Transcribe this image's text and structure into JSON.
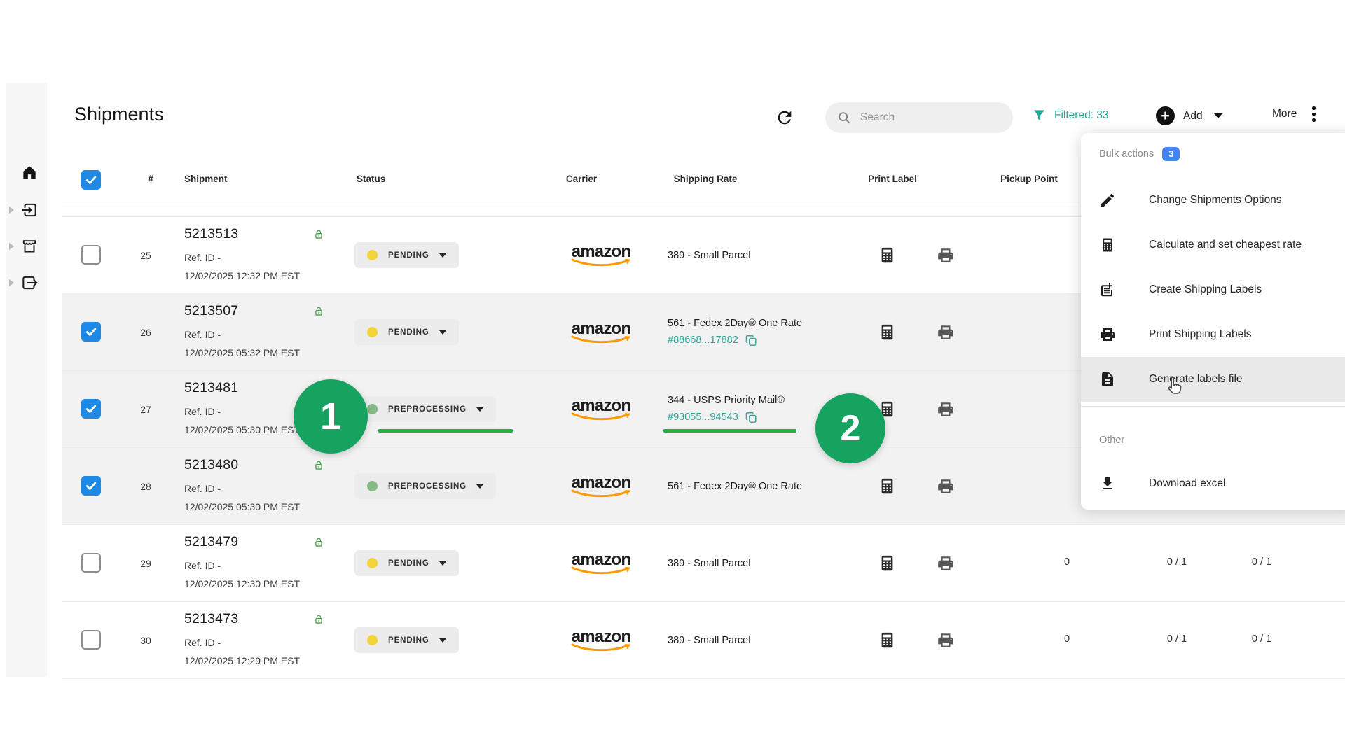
{
  "header": {
    "title": "Shipments",
    "search_placeholder": "Search",
    "filtered_label": "Filtered: 33",
    "add_label": "Add",
    "more_label": "More"
  },
  "sidebar": {
    "items": [
      {
        "icon": "home-icon",
        "expandable": false
      },
      {
        "icon": "inbound-icon",
        "expandable": true
      },
      {
        "icon": "store-icon",
        "expandable": true
      },
      {
        "icon": "outbound-icon",
        "expandable": true
      }
    ]
  },
  "bulk_menu": {
    "section_label": "Bulk actions",
    "selected_count": "3",
    "items": [
      {
        "icon": "pencil-icon",
        "label": "Change Shipments Options",
        "highlighted": false
      },
      {
        "icon": "calculator-icon",
        "label": "Calculate and set cheapest rate",
        "highlighted": false
      },
      {
        "icon": "note-add-icon",
        "label": "Create Shipping Labels",
        "highlighted": false
      },
      {
        "icon": "printer-icon",
        "label": "Print Shipping Labels",
        "highlighted": false
      },
      {
        "icon": "document-icon",
        "label": "Generate labels file",
        "highlighted": true
      }
    ],
    "other_label": "Other",
    "other_items": [
      {
        "icon": "download-icon",
        "label": "Download excel",
        "highlighted": false
      }
    ]
  },
  "table": {
    "columns": [
      "#",
      "Shipment",
      "Status",
      "Carrier",
      "Shipping Rate",
      "Print Label",
      "Pickup Point"
    ],
    "rows": [
      {
        "num": "25",
        "id": "5213513",
        "ref": "Ref. ID -",
        "date": "12/02/2025 12:32 PM EST",
        "checked": false,
        "status": "PENDING",
        "status_dot": "#f2d338",
        "carrier": "amazon",
        "rate": "389 - Small Parcel",
        "link": "",
        "vals": []
      },
      {
        "num": "26",
        "id": "5213507",
        "ref": "Ref. ID -",
        "date": "12/02/2025 05:32 PM EST",
        "checked": true,
        "status": "PENDING",
        "status_dot": "#f2d338",
        "carrier": "amazon",
        "rate": "561 - Fedex 2Day® One Rate",
        "link": "#88668...17882",
        "vals": []
      },
      {
        "num": "27",
        "id": "5213481",
        "ref": "Ref. ID -",
        "date": "12/02/2025 05:30 PM EST",
        "checked": true,
        "status": "PREPROCESSING",
        "status_dot": "#85ba85",
        "carrier": "amazon",
        "rate": "344 - USPS Priority Mail®",
        "link": "#93055...94543",
        "vals": []
      },
      {
        "num": "28",
        "id": "5213480",
        "ref": "Ref. ID -",
        "date": "12/02/2025 05:30 PM EST",
        "checked": true,
        "status": "PREPROCESSING",
        "status_dot": "#85ba85",
        "carrier": "amazon",
        "rate": "561 - Fedex 2Day® One Rate",
        "link": "",
        "vals": []
      },
      {
        "num": "29",
        "id": "5213479",
        "ref": "Ref. ID -",
        "date": "12/02/2025 12:30 PM EST",
        "checked": false,
        "status": "PENDING",
        "status_dot": "#f2d338",
        "carrier": "amazon",
        "rate": "389 - Small Parcel",
        "link": "",
        "vals": [
          "0",
          "0 / 1",
          "0 / 1"
        ]
      },
      {
        "num": "30",
        "id": "5213473",
        "ref": "Ref. ID -",
        "date": "12/02/2025 12:29 PM EST",
        "checked": false,
        "status": "PENDING",
        "status_dot": "#f2d338",
        "carrier": "amazon",
        "rate": "389 - Small Parcel",
        "link": "",
        "vals": [
          "0",
          "0 / 1",
          "0 / 1"
        ]
      }
    ]
  },
  "annotations": {
    "step1": "1",
    "step2": "2"
  },
  "colors": {
    "accent_teal": "#26a69a",
    "annotation_green": "#16a25f",
    "underline_green": "#22b14c",
    "pending_dot": "#f2d338",
    "preprocessing_dot": "#85ba85",
    "checkbox_blue": "#1e88e5",
    "badge_blue": "#4285f4",
    "lock_green": "#43a047"
  }
}
